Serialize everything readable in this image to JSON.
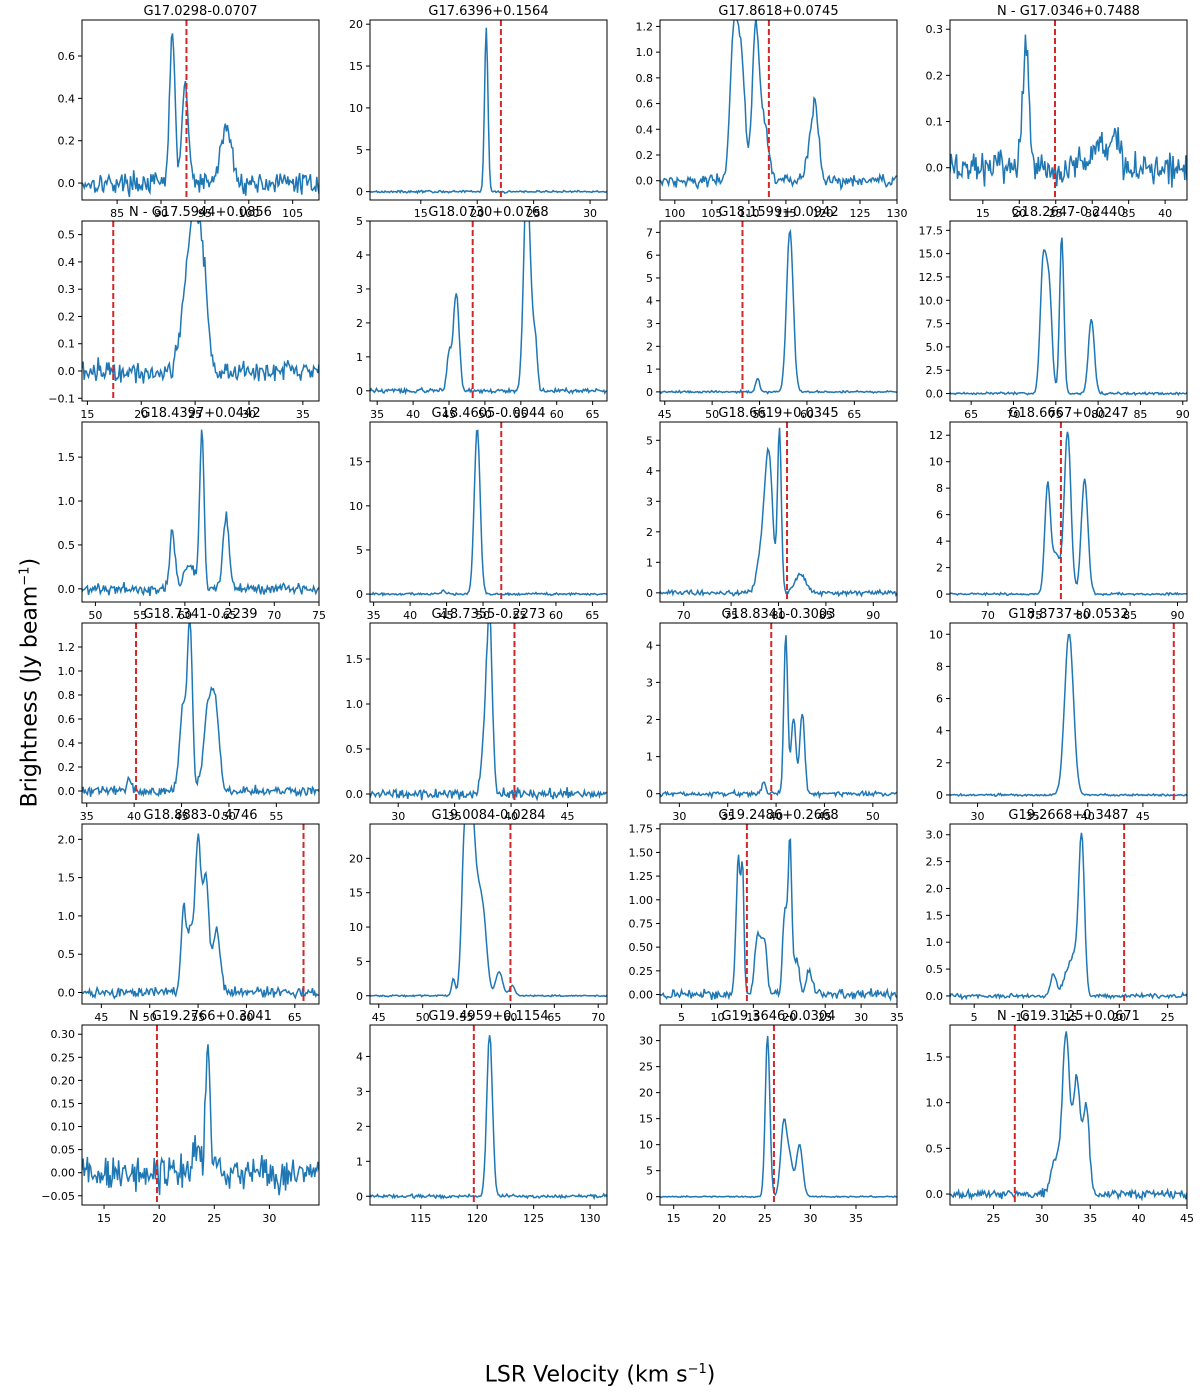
{
  "figure": {
    "xlabel": "LSR Velocity (km s",
    "xlabel_sup": "−1",
    "xlabel_end": ")",
    "ylabel": "Brightness (Jy beam",
    "ylabel_sup": "−1",
    "ylabel_end": ")",
    "line_color": "#1f77b4",
    "marker_color": "#d62728"
  },
  "chart_data": [
    {
      "type": "line",
      "title": "G17.0298-0.0707",
      "xlim": [
        81,
        108
      ],
      "ylim": [
        -0.08,
        0.77
      ],
      "xticks": [
        85,
        90,
        95,
        100,
        105
      ],
      "yticks": [
        0.0,
        0.2,
        0.4,
        0.6
      ],
      "ytick_labels": [
        "0.0",
        "0.2",
        "0.4",
        "0.6"
      ],
      "vline": 92.9,
      "peaks": [
        [
          91.3,
          0.73,
          0.3
        ],
        [
          92.6,
          0.35,
          0.25
        ],
        [
          93.0,
          0.25,
          0.3
        ],
        [
          97.6,
          0.24,
          0.5
        ],
        [
          96.8,
          0.1,
          0.4
        ]
      ],
      "noise": 0.03
    },
    {
      "type": "line",
      "title": "G17.6396+0.1564",
      "xlim": [
        10.5,
        31.5
      ],
      "ylim": [
        -1.0,
        20.5
      ],
      "xticks": [
        15,
        20,
        25,
        30
      ],
      "yticks": [
        0,
        5,
        10,
        15,
        20
      ],
      "ytick_labels": [
        "0",
        "5",
        "10",
        "15",
        "20"
      ],
      "vline": 22.1,
      "peaks": [
        [
          20.8,
          19.5,
          0.15
        ]
      ],
      "noise": 0.08
    },
    {
      "type": "line",
      "title": "G17.8618+0.0745",
      "xlim": [
        98,
        130
      ],
      "ylim": [
        -0.15,
        1.25
      ],
      "xticks": [
        100,
        105,
        110,
        115,
        120,
        125,
        130
      ],
      "yticks": [
        0.0,
        0.2,
        0.4,
        0.6,
        0.8,
        1.0,
        1.2
      ],
      "ytick_labels": [
        "0.0",
        "0.2",
        "0.4",
        "0.6",
        "0.8",
        "1.0",
        "1.2"
      ],
      "vline": 112.7,
      "peaks": [
        [
          108.0,
          1.15,
          0.5
        ],
        [
          109.0,
          0.9,
          0.5
        ],
        [
          110.9,
          1.15,
          0.45
        ],
        [
          112.0,
          0.45,
          0.6
        ],
        [
          119.0,
          0.55,
          0.45
        ],
        [
          118.2,
          0.2,
          0.5
        ]
      ],
      "noise": 0.03
    },
    {
      "type": "line",
      "title": "N - G17.0346+0.7488",
      "xlim": [
        10.5,
        43
      ],
      "ylim": [
        -0.07,
        0.32
      ],
      "xticks": [
        15,
        20,
        25,
        30,
        35,
        40
      ],
      "yticks": [
        0.0,
        0.1,
        0.2,
        0.3
      ],
      "ytick_labels": [
        "0.0",
        "0.1",
        "0.2",
        "0.3"
      ],
      "vline": 24.9,
      "peaks": [
        [
          20.9,
          0.28,
          0.4
        ],
        [
          33.2,
          0.08,
          0.5
        ],
        [
          31.0,
          0.06,
          1.0
        ]
      ],
      "noise": 0.022
    },
    {
      "type": "line",
      "title": "N - G17.5944+0.0856",
      "xlim": [
        14.5,
        36.5
      ],
      "ylim": [
        -0.11,
        0.55
      ],
      "xticks": [
        15,
        20,
        25,
        30,
        35
      ],
      "yticks": [
        -0.1,
        0.0,
        0.1,
        0.2,
        0.3,
        0.4,
        0.5
      ],
      "ytick_labels": [
        "−0.1",
        "0.0",
        "0.1",
        "0.2",
        "0.3",
        "0.4",
        "0.5"
      ],
      "vline": 17.4,
      "peaks": [
        [
          25.0,
          0.45,
          0.5
        ],
        [
          25.8,
          0.3,
          0.4
        ],
        [
          24.2,
          0.25,
          0.6
        ]
      ],
      "noise": 0.025
    },
    {
      "type": "line",
      "title": "G18.0730+0.0768",
      "xlim": [
        34,
        67
      ],
      "ylim": [
        -0.3,
        5.0
      ],
      "xticks": [
        35,
        40,
        45,
        50,
        55,
        60,
        65
      ],
      "yticks": [
        0,
        1,
        2,
        3,
        4,
        5
      ],
      "ytick_labels": [
        "0",
        "1",
        "2",
        "3",
        "4",
        "5"
      ],
      "vline": 48.3,
      "peaks": [
        [
          46.0,
          2.9,
          0.4
        ],
        [
          45.0,
          1.1,
          0.3
        ],
        [
          55.7,
          4.7,
          0.4
        ],
        [
          56.2,
          2.8,
          0.4
        ],
        [
          57.0,
          1.4,
          0.3
        ]
      ],
      "noise": 0.04
    },
    {
      "type": "line",
      "title": "G18.1599+0.0942",
      "xlim": [
        44.5,
        69.5
      ],
      "ylim": [
        -0.4,
        7.5
      ],
      "xticks": [
        45,
        50,
        55,
        60,
        65
      ],
      "yticks": [
        0,
        1,
        2,
        3,
        4,
        5,
        6,
        7
      ],
      "ytick_labels": [
        "0",
        "1",
        "2",
        "3",
        "4",
        "5",
        "6",
        "7"
      ],
      "vline": 53.2,
      "peaks": [
        [
          58.2,
          7.1,
          0.35
        ],
        [
          54.8,
          0.6,
          0.2
        ]
      ],
      "noise": 0.03
    },
    {
      "type": "line",
      "title": "G18.2647-0.2440",
      "xlim": [
        62.5,
        90.5
      ],
      "ylim": [
        -0.8,
        18.5
      ],
      "xticks": [
        65,
        70,
        75,
        80,
        85,
        90
      ],
      "yticks": [
        0.0,
        2.5,
        5.0,
        7.5,
        10.0,
        12.5,
        15.0,
        17.5
      ],
      "ytick_labels": [
        "0.0",
        "2.5",
        "5.0",
        "7.5",
        "10.0",
        "12.5",
        "15.0",
        "17.5"
      ],
      "vline": null,
      "peaks": [
        [
          73.5,
          13.5,
          0.35
        ],
        [
          74.2,
          11.0,
          0.35
        ],
        [
          75.7,
          17.0,
          0.25
        ],
        [
          79.2,
          8.0,
          0.35
        ]
      ],
      "noise": 0.08
    },
    {
      "type": "line",
      "title": "G18.4397+0.0442",
      "xlim": [
        48.5,
        75
      ],
      "ylim": [
        -0.15,
        1.9
      ],
      "xticks": [
        50,
        55,
        60,
        65,
        70,
        75
      ],
      "yticks": [
        0.0,
        0.5,
        1.0,
        1.5
      ],
      "ytick_labels": [
        "0.0",
        "0.5",
        "1.0",
        "1.5"
      ],
      "vline": null,
      "peaks": [
        [
          58.6,
          0.65,
          0.3
        ],
        [
          61.9,
          1.8,
          0.25
        ],
        [
          64.6,
          0.8,
          0.35
        ],
        [
          60.5,
          0.25,
          0.6
        ]
      ],
      "noise": 0.04
    },
    {
      "type": "line",
      "title": "G18.4605-0.0044",
      "xlim": [
        34.5,
        67
      ],
      "ylim": [
        -0.9,
        19.5
      ],
      "xticks": [
        35,
        40,
        45,
        50,
        55,
        60,
        65
      ],
      "yticks": [
        0,
        5,
        10,
        15
      ],
      "ytick_labels": [
        "0",
        "5",
        "10",
        "15"
      ],
      "vline": 52.5,
      "peaks": [
        [
          49.2,
          18.8,
          0.4
        ],
        [
          44.6,
          0.4,
          0.3
        ]
      ],
      "noise": 0.08
    },
    {
      "type": "line",
      "title": "G18.6619+0.0345",
      "xlim": [
        67.5,
        92.5
      ],
      "ylim": [
        -0.3,
        5.6
      ],
      "xticks": [
        70,
        75,
        80,
        85,
        90
      ],
      "yticks": [
        0,
        1,
        2,
        3,
        4,
        5
      ],
      "ytick_labels": [
        "0",
        "1",
        "2",
        "3",
        "4",
        "5"
      ],
      "vline": 80.9,
      "peaks": [
        [
          79.0,
          4.1,
          0.4
        ],
        [
          80.1,
          5.3,
          0.2
        ],
        [
          78.3,
          1.5,
          0.5
        ],
        [
          82.3,
          0.6,
          0.6
        ]
      ],
      "noise": 0.05
    },
    {
      "type": "line",
      "title": "G18.6667+0.0247",
      "xlim": [
        66,
        91
      ],
      "ylim": [
        -0.6,
        13.0
      ],
      "xticks": [
        70,
        75,
        80,
        85,
        90
      ],
      "yticks": [
        0,
        2,
        4,
        6,
        8,
        10,
        12
      ],
      "ytick_labels": [
        "0",
        "2",
        "4",
        "6",
        "8",
        "10",
        "12"
      ],
      "vline": 77.7,
      "peaks": [
        [
          76.3,
          8.2,
          0.3
        ],
        [
          77.2,
          3.0,
          0.4
        ],
        [
          78.4,
          12.3,
          0.35
        ],
        [
          80.2,
          8.7,
          0.35
        ]
      ],
      "noise": 0.05
    },
    {
      "type": "line",
      "title": "G18.7341-0.2239",
      "xlim": [
        34.5,
        59.5
      ],
      "ylim": [
        -0.1,
        1.4
      ],
      "xticks": [
        35,
        40,
        45,
        50,
        55
      ],
      "yticks": [
        0.0,
        0.2,
        0.4,
        0.6,
        0.8,
        1.0,
        1.2
      ],
      "ytick_labels": [
        "0.0",
        "0.2",
        "0.4",
        "0.6",
        "0.8",
        "1.0",
        "1.2"
      ],
      "vline": 40.2,
      "peaks": [
        [
          45.2,
          0.7,
          0.4
        ],
        [
          45.9,
          1.3,
          0.25
        ],
        [
          47.8,
          0.65,
          0.5
        ],
        [
          48.6,
          0.6,
          0.4
        ],
        [
          39.5,
          0.08,
          0.3
        ]
      ],
      "noise": 0.025
    },
    {
      "type": "line",
      "title": "G18.7355-0.2273",
      "xlim": [
        27.5,
        48.5
      ],
      "ylim": [
        -0.1,
        1.9
      ],
      "xticks": [
        30,
        35,
        40,
        45
      ],
      "yticks": [
        0.0,
        0.5,
        1.0,
        1.5
      ],
      "ytick_labels": [
        "0.0",
        "0.5",
        "1.0",
        "1.5"
      ],
      "vline": 40.3,
      "peaks": [
        [
          38.1,
          1.75,
          0.25
        ],
        [
          37.7,
          0.6,
          0.3
        ]
      ],
      "noise": 0.035
    },
    {
      "type": "line",
      "title": "G18.8341-0.3003",
      "xlim": [
        28,
        52.5
      ],
      "ylim": [
        -0.25,
        4.6
      ],
      "xticks": [
        30,
        35,
        40,
        45,
        50
      ],
      "yticks": [
        0,
        1,
        2,
        3,
        4
      ],
      "ytick_labels": [
        "0",
        "1",
        "2",
        "3",
        "4"
      ],
      "vline": 39.5,
      "peaks": [
        [
          41.0,
          4.3,
          0.2
        ],
        [
          41.8,
          2.0,
          0.25
        ],
        [
          42.7,
          2.2,
          0.25
        ],
        [
          38.7,
          0.3,
          0.2
        ]
      ],
      "noise": 0.04
    },
    {
      "type": "line",
      "title": "G18.8737+0.0532",
      "xlim": [
        27.5,
        49
      ],
      "ylim": [
        -0.5,
        10.7
      ],
      "xticks": [
        30,
        35,
        40,
        45
      ],
      "yticks": [
        0,
        2,
        4,
        6,
        8,
        10
      ],
      "ytick_labels": [
        "0",
        "2",
        "4",
        "6",
        "8",
        "10"
      ],
      "vline": 47.8,
      "peaks": [
        [
          38.3,
          10.1,
          0.4
        ]
      ],
      "noise": 0.04
    },
    {
      "type": "line",
      "title": "G18.8883-0.4746",
      "xlim": [
        43,
        67.5
      ],
      "ylim": [
        -0.15,
        2.2
      ],
      "xticks": [
        45,
        50,
        55,
        60,
        65
      ],
      "yticks": [
        0.0,
        0.5,
        1.0,
        1.5,
        2.0
      ],
      "ytick_labels": [
        "0.0",
        "0.5",
        "1.0",
        "1.5",
        "2.0"
      ],
      "vline": 65.9,
      "peaks": [
        [
          53.5,
          1.1,
          0.25
        ],
        [
          54.2,
          0.8,
          0.3
        ],
        [
          55.0,
          2.0,
          0.3
        ],
        [
          55.8,
          1.5,
          0.3
        ],
        [
          56.9,
          0.8,
          0.4
        ]
      ],
      "noise": 0.04
    },
    {
      "type": "line",
      "title": "G19.0084-0.0284",
      "xlim": [
        44,
        71
      ],
      "ylim": [
        -1.2,
        25.0
      ],
      "xticks": [
        45,
        50,
        55,
        60,
        65,
        70
      ],
      "yticks": [
        0,
        5,
        10,
        15,
        20
      ],
      "ytick_labels": [
        "0",
        "5",
        "10",
        "15",
        "20"
      ],
      "vline": 60.0,
      "peaks": [
        [
          54.8,
          23.0,
          0.35
        ],
        [
          55.5,
          22.0,
          0.35
        ],
        [
          56.2,
          14.5,
          0.5
        ],
        [
          57.0,
          8.0,
          0.4
        ],
        [
          58.7,
          3.5,
          0.4
        ],
        [
          53.5,
          2.5,
          0.2
        ],
        [
          60.2,
          1.5,
          0.3
        ]
      ],
      "noise": 0.08
    },
    {
      "type": "line",
      "title": "G19.2486+0.2668",
      "xlim": [
        2,
        35
      ],
      "ylim": [
        -0.1,
        1.8
      ],
      "xticks": [
        5,
        10,
        15,
        20,
        25,
        30,
        35
      ],
      "yticks": [
        0.0,
        0.25,
        0.5,
        0.75,
        1.0,
        1.25,
        1.5,
        1.75
      ],
      "ytick_labels": [
        "0.00",
        "0.25",
        "0.50",
        "0.75",
        "1.00",
        "1.25",
        "1.50",
        "1.75"
      ],
      "vline": 14.1,
      "peaks": [
        [
          12.9,
          1.45,
          0.3
        ],
        [
          13.5,
          1.2,
          0.2
        ],
        [
          15.6,
          0.6,
          0.4
        ],
        [
          16.5,
          0.55,
          0.4
        ],
        [
          19.4,
          0.9,
          0.3
        ],
        [
          20.1,
          1.6,
          0.25
        ],
        [
          21.0,
          0.35,
          0.4
        ],
        [
          22.8,
          0.25,
          0.4
        ]
      ],
      "noise": 0.03
    },
    {
      "type": "line",
      "title": "G19.2668+0.3487",
      "xlim": [
        2.5,
        27
      ],
      "ylim": [
        -0.15,
        3.2
      ],
      "xticks": [
        5,
        10,
        15,
        20,
        25
      ],
      "yticks": [
        0.0,
        0.5,
        1.0,
        1.5,
        2.0,
        2.5,
        3.0
      ],
      "ytick_labels": [
        "0.0",
        "0.5",
        "1.0",
        "1.5",
        "2.0",
        "2.5",
        "3.0"
      ],
      "vline": 20.5,
      "peaks": [
        [
          16.1,
          2.95,
          0.3
        ],
        [
          13.2,
          0.4,
          0.3
        ],
        [
          14.5,
          0.35,
          0.4
        ],
        [
          15.3,
          0.7,
          0.4
        ]
      ],
      "noise": 0.025
    },
    {
      "type": "line",
      "title": "N - G19.2766+0.3041",
      "xlim": [
        13,
        34.5
      ],
      "ylim": [
        -0.07,
        0.32
      ],
      "xticks": [
        15,
        20,
        25,
        30
      ],
      "yticks": [
        -0.05,
        0.0,
        0.05,
        0.1,
        0.15,
        0.2,
        0.25,
        0.3
      ],
      "ytick_labels": [
        "−0.05",
        "0.00",
        "0.05",
        "0.10",
        "0.15",
        "0.20",
        "0.25",
        "0.30"
      ],
      "vline": 19.8,
      "peaks": [
        [
          24.4,
          0.29,
          0.2
        ],
        [
          23.4,
          0.05,
          0.3
        ]
      ],
      "noise": 0.022
    },
    {
      "type": "line",
      "title": "G19.4959+0.1154",
      "xlim": [
        110.5,
        131.5
      ],
      "ylim": [
        -0.25,
        4.9
      ],
      "xticks": [
        115,
        120,
        125,
        130
      ],
      "yticks": [
        0,
        1,
        2,
        3,
        4
      ],
      "ytick_labels": [
        "0",
        "1",
        "2",
        "3",
        "4"
      ],
      "vline": 119.7,
      "peaks": [
        [
          121.1,
          4.65,
          0.25
        ]
      ],
      "noise": 0.03
    },
    {
      "type": "line",
      "title": "G19.3646-0.0304",
      "xlim": [
        13.5,
        39.5
      ],
      "ylim": [
        -1.6,
        33.0
      ],
      "xticks": [
        15,
        20,
        25,
        30,
        35
      ],
      "yticks": [
        0,
        5,
        10,
        15,
        20,
        25,
        30
      ],
      "ytick_labels": [
        "0",
        "5",
        "10",
        "15",
        "20",
        "25",
        "30"
      ],
      "vline": 26.0,
      "peaks": [
        [
          25.3,
          31.0,
          0.25
        ],
        [
          27.1,
          14.5,
          0.35
        ],
        [
          28.8,
          10.0,
          0.35
        ],
        [
          27.8,
          6.0,
          0.3
        ]
      ],
      "noise": 0.08
    },
    {
      "type": "line",
      "title": "N - G19.3125+0.0671",
      "xlim": [
        20.5,
        45
      ],
      "ylim": [
        -0.12,
        1.85
      ],
      "xticks": [
        25,
        30,
        35,
        40,
        45
      ],
      "yticks": [
        0.0,
        0.5,
        1.0,
        1.5
      ],
      "ytick_labels": [
        "0.0",
        "0.5",
        "1.0",
        "1.5"
      ],
      "vline": 27.2,
      "peaks": [
        [
          32.5,
          1.7,
          0.35
        ],
        [
          33.6,
          1.25,
          0.4
        ],
        [
          34.6,
          0.95,
          0.3
        ],
        [
          31.5,
          0.4,
          0.5
        ]
      ],
      "noise": 0.03
    }
  ]
}
